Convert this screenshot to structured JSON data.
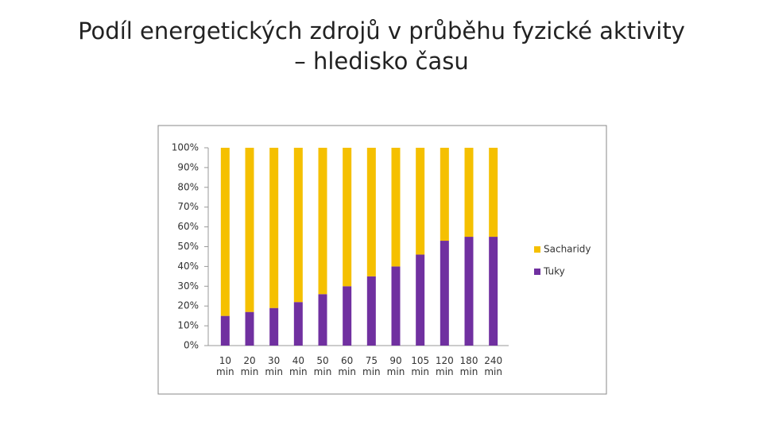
{
  "chart_data": {
    "type": "stacked_bar",
    "title": "Podíl energetických zdrojů v průběhu fyzické aktivity – hledisko času",
    "categories": [
      "10 min",
      "20 min",
      "30 min",
      "40 min",
      "50 min",
      "60 min",
      "75 min",
      "90 min",
      "105 min",
      "120 min",
      "180 min",
      "240 min"
    ],
    "series": [
      {
        "name": "Tuky",
        "color": "#7030a0",
        "values": [
          15,
          17,
          19,
          22,
          26,
          30,
          35,
          40,
          46,
          53,
          55,
          55
        ]
      },
      {
        "name": "Sacharidy",
        "color": "#f5c000",
        "values": [
          85,
          83,
          81,
          78,
          74,
          70,
          65,
          60,
          54,
          47,
          45,
          45
        ]
      }
    ],
    "ylim": [
      0,
      100
    ],
    "yticks": [
      {
        "value": 0,
        "label": "0%"
      },
      {
        "value": 10,
        "label": "10%"
      },
      {
        "value": 20,
        "label": "20%"
      },
      {
        "value": 30,
        "label": "30%"
      },
      {
        "value": 40,
        "label": "40%"
      },
      {
        "value": 50,
        "label": "50%"
      },
      {
        "value": 60,
        "label": "60%"
      },
      {
        "value": 70,
        "label": "70%"
      },
      {
        "value": 80,
        "label": "80%"
      },
      {
        "value": 90,
        "label": "90%"
      },
      {
        "value": 100,
        "label": "100%"
      }
    ],
    "grid": false,
    "legend": "right"
  }
}
